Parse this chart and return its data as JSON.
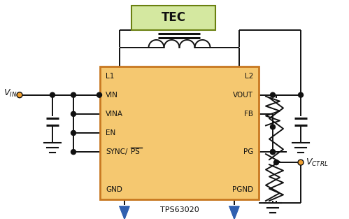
{
  "bg_color": "#ffffff",
  "chip_color": "#f5c870",
  "chip_border": "#c87820",
  "tec_color": "#d4e8a0",
  "tec_border": "#6a8010",
  "line_color": "#111111",
  "text_color": "#111111",
  "gnd_arrow_color": "#3060b0",
  "chip_label": "TPS63020",
  "tec_label": "TEC",
  "pin_labels_left": [
    "L1",
    "VIN",
    "VINA",
    "EN",
    "SYNC/PS",
    "",
    "GND"
  ],
  "pin_labels_right": [
    "L2",
    "VOUT",
    "FB",
    "",
    "PG",
    "",
    "PGND"
  ]
}
